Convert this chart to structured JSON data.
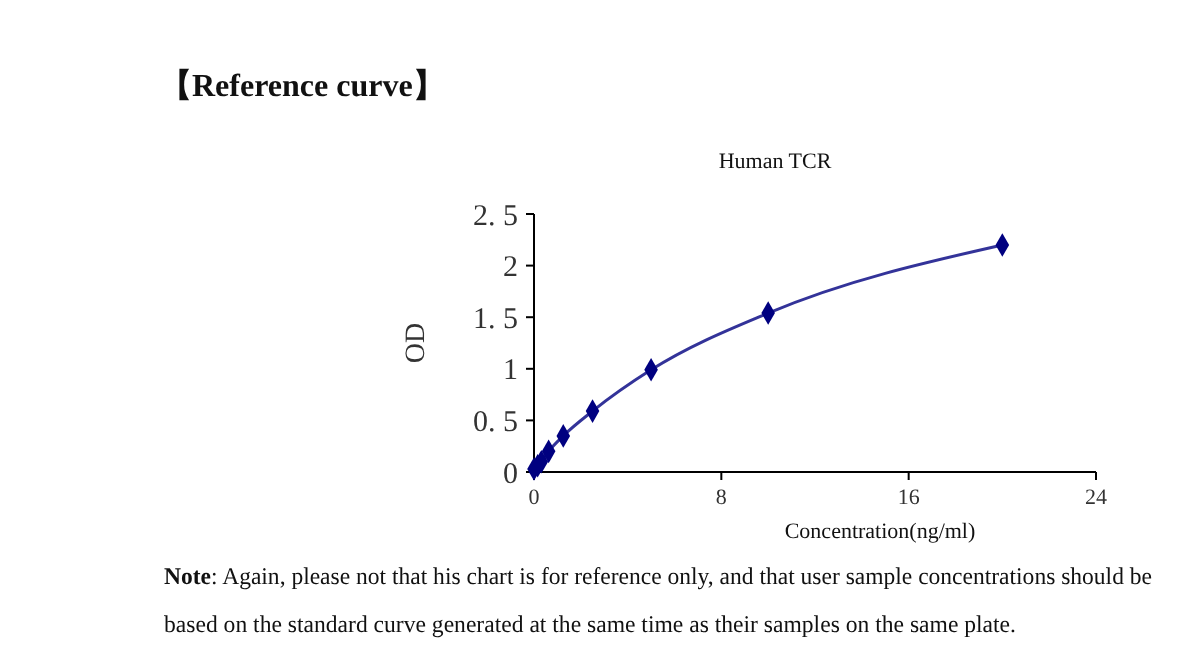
{
  "chart_data": {
    "type": "line",
    "title": "Human TCR",
    "xlabel": "Concentration(ng/ml)",
    "ylabel": "OD",
    "annotations": [
      "【Reference curve】",
      "Note: Again, please not that his chart is for reference only, and that user sample concentrations should be based on the standard curve generated at the same time as their samples on the same plate."
    ],
    "x": [
      0,
      0.156,
      0.3125,
      0.625,
      1.25,
      2.5,
      5,
      10,
      20
    ],
    "series": [
      {
        "color": "#000080",
        "values": [
          0.03,
          0.06,
          0.1,
          0.2,
          0.35,
          0.59,
          0.99,
          1.54,
          2.2
        ]
      }
    ],
    "xlim": [
      0,
      24
    ],
    "xticks": [
      0,
      8,
      16,
      24
    ],
    "ylim": [
      0,
      2.5
    ],
    "yticks": [
      0,
      {
        "value": 0.5,
        "label": "0. 5"
      },
      1,
      {
        "value": 1.5,
        "label": "1. 5"
      },
      2,
      {
        "value": 2.5,
        "label": "2. 5"
      }
    ],
    "marker": "diamond",
    "line_style": "solid",
    "grid": false
  }
}
